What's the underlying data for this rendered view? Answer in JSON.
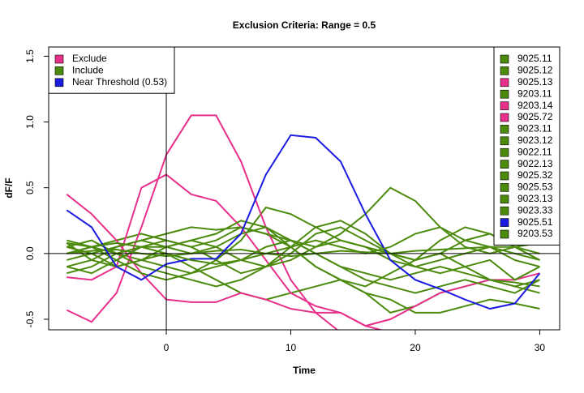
{
  "chart_data": {
    "type": "line",
    "title": "Exclusion Criteria: Range = 0.5",
    "x_label": "Time",
    "y_label": "dF/F",
    "xlim": [
      -9.45,
      31.6
    ],
    "ylim": [
      -0.58,
      1.57
    ],
    "xticks": [
      0,
      10,
      20,
      30
    ],
    "yticks": [
      {
        "value": -0.5,
        "label": "-0.5"
      },
      {
        "value": 0,
        "label": "0.0"
      },
      0.5,
      {
        "value": 1,
        "label": "1.0"
      },
      1.5
    ],
    "vline": 0,
    "hline": 0,
    "legend": "topright",
    "group_legend": "topleft",
    "legend_groups": [
      {
        "label": "Exclude",
        "color": "#e7308a"
      },
      {
        "label": "Include",
        "color": "#4b8a0c"
      },
      {
        "label": "Near Threshold (0.53)",
        "color": "#1c1ce0"
      }
    ],
    "x": [
      -8,
      -6,
      -4,
      -2,
      0,
      2,
      4,
      6,
      8,
      10,
      12,
      14,
      16,
      18,
      20,
      22,
      24,
      26,
      28,
      30
    ],
    "series": [
      {
        "name": "9025.11",
        "color": "#4b8a0c",
        "values": [
          0.05,
          0.1,
          0.0,
          -0.05,
          -0.1,
          -0.15,
          -0.05,
          0.1,
          0.35,
          0.3,
          0.2,
          0.1,
          0.05,
          0.0,
          -0.05,
          0.1,
          0.2,
          0.15,
          0.05,
          -0.05
        ]
      },
      {
        "name": "9025.12",
        "color": "#4b8a0c",
        "values": [
          0.0,
          0.05,
          0.1,
          0.15,
          0.1,
          0.05,
          0.1,
          0.2,
          0.15,
          0.05,
          -0.1,
          -0.2,
          -0.3,
          -0.45,
          -0.4,
          -0.3,
          -0.25,
          -0.2,
          -0.25,
          -0.2
        ]
      },
      {
        "name": "9025.13",
        "color": "#e7308a",
        "values": [
          -0.43,
          -0.52,
          -0.3,
          0.2,
          0.75,
          1.05,
          1.05,
          0.7,
          0.2,
          -0.2,
          -0.45,
          -0.6,
          -0.65,
          -0.62,
          -0.6,
          -0.62,
          -0.65,
          -0.66,
          -0.66,
          -0.66
        ]
      },
      {
        "name": "9203.11",
        "color": "#4b8a0c",
        "values": [
          0.08,
          -0.05,
          -0.1,
          -0.05,
          0.0,
          -0.1,
          -0.2,
          -0.3,
          -0.35,
          -0.3,
          -0.25,
          -0.2,
          -0.3,
          -0.35,
          -0.45,
          -0.45,
          -0.4,
          -0.35,
          -0.38,
          -0.42
        ]
      },
      {
        "name": "9203.14",
        "color": "#e7308a",
        "values": [
          -0.18,
          -0.2,
          -0.1,
          0.5,
          0.6,
          0.45,
          0.4,
          0.2,
          -0.05,
          -0.3,
          -0.4,
          -0.45,
          -0.55,
          -0.5,
          -0.4,
          -0.3,
          -0.25,
          -0.2,
          -0.2,
          -0.15
        ]
      },
      {
        "name": "9025.72",
        "color": "#e7308a",
        "values": [
          0.45,
          0.3,
          0.1,
          -0.15,
          -0.35,
          -0.37,
          -0.37,
          -0.3,
          -0.35,
          -0.42,
          -0.45,
          -0.45,
          -0.55,
          -0.6,
          -0.62,
          -0.64,
          -0.65,
          -0.65,
          -0.65,
          -0.65
        ]
      },
      {
        "name": "9023.11",
        "color": "#4b8a0c",
        "values": [
          -0.05,
          0.0,
          0.05,
          0.1,
          0.15,
          0.2,
          0.18,
          0.2,
          0.15,
          0.1,
          0.05,
          0.15,
          0.3,
          0.5,
          0.4,
          0.2,
          0.05,
          0.0,
          0.05,
          -0.05
        ]
      },
      {
        "name": "9023.12",
        "color": "#4b8a0c",
        "values": [
          0.1,
          0.05,
          -0.05,
          -0.15,
          -0.2,
          -0.15,
          -0.1,
          -0.05,
          0.05,
          0.1,
          0.0,
          -0.1,
          -0.15,
          -0.2,
          -0.15,
          -0.1,
          -0.15,
          -0.2,
          -0.22,
          -0.25
        ]
      },
      {
        "name": "9022.11",
        "color": "#4b8a0c",
        "values": [
          -0.15,
          -0.1,
          0.0,
          0.05,
          0.05,
          0.1,
          0.15,
          0.25,
          0.2,
          0.1,
          0.0,
          -0.1,
          -0.2,
          -0.25,
          -0.3,
          -0.25,
          -0.2,
          -0.25,
          -0.3,
          -0.2
        ]
      },
      {
        "name": "9022.13",
        "color": "#4b8a0c",
        "values": [
          0.05,
          0.0,
          -0.1,
          -0.05,
          0.05,
          0.1,
          0.05,
          -0.05,
          -0.1,
          -0.05,
          0.05,
          0.1,
          0.05,
          -0.05,
          -0.1,
          -0.05,
          0.0,
          0.05,
          0.0,
          -0.05
        ]
      },
      {
        "name": "9025.32",
        "color": "#4b8a0c",
        "values": [
          -0.1,
          -0.15,
          -0.05,
          0.05,
          0.1,
          0.05,
          -0.05,
          -0.15,
          -0.1,
          0.0,
          0.15,
          0.2,
          0.1,
          0.0,
          -0.05,
          0.0,
          0.1,
          0.15,
          0.05,
          0.0
        ]
      },
      {
        "name": "9025.53",
        "color": "#4b8a0c",
        "values": [
          0.0,
          0.02,
          0.03,
          0.0,
          -0.02,
          0.0,
          0.02,
          0.03,
          0.0,
          -0.02,
          0.0,
          0.02,
          0.01,
          0.0,
          0.02,
          0.03,
          0.04,
          0.05,
          0.05,
          0.08
        ]
      },
      {
        "name": "9023.13",
        "color": "#4b8a0c",
        "values": [
          0.08,
          0.05,
          0.0,
          -0.1,
          -0.15,
          -0.2,
          -0.25,
          -0.2,
          -0.1,
          0.05,
          0.2,
          0.25,
          0.15,
          0.0,
          -0.1,
          -0.15,
          -0.1,
          -0.05,
          -0.2,
          -0.1
        ]
      },
      {
        "name": "9023.33",
        "color": "#4b8a0c",
        "values": [
          -0.1,
          -0.05,
          0.05,
          0.1,
          0.05,
          0.0,
          0.05,
          0.15,
          0.2,
          0.05,
          -0.1,
          -0.2,
          -0.25,
          -0.15,
          -0.05,
          0.0,
          -0.1,
          -0.2,
          -0.25,
          -0.3
        ]
      },
      {
        "name": "9025.51",
        "color": "#1c1ce0",
        "values": [
          0.33,
          0.2,
          -0.1,
          -0.2,
          -0.08,
          -0.04,
          -0.04,
          0.15,
          0.6,
          0.9,
          0.88,
          0.7,
          0.3,
          -0.05,
          -0.2,
          -0.27,
          -0.35,
          -0.42,
          -0.38,
          -0.15
        ]
      },
      {
        "name": "9203.53",
        "color": "#4b8a0c",
        "values": [
          0.0,
          0.05,
          0.08,
          0.05,
          0.0,
          -0.05,
          -0.08,
          -0.05,
          0.0,
          0.05,
          0.1,
          0.05,
          0.0,
          0.05,
          0.15,
          0.2,
          0.1,
          0.05,
          -0.05,
          -0.1
        ]
      }
    ]
  }
}
